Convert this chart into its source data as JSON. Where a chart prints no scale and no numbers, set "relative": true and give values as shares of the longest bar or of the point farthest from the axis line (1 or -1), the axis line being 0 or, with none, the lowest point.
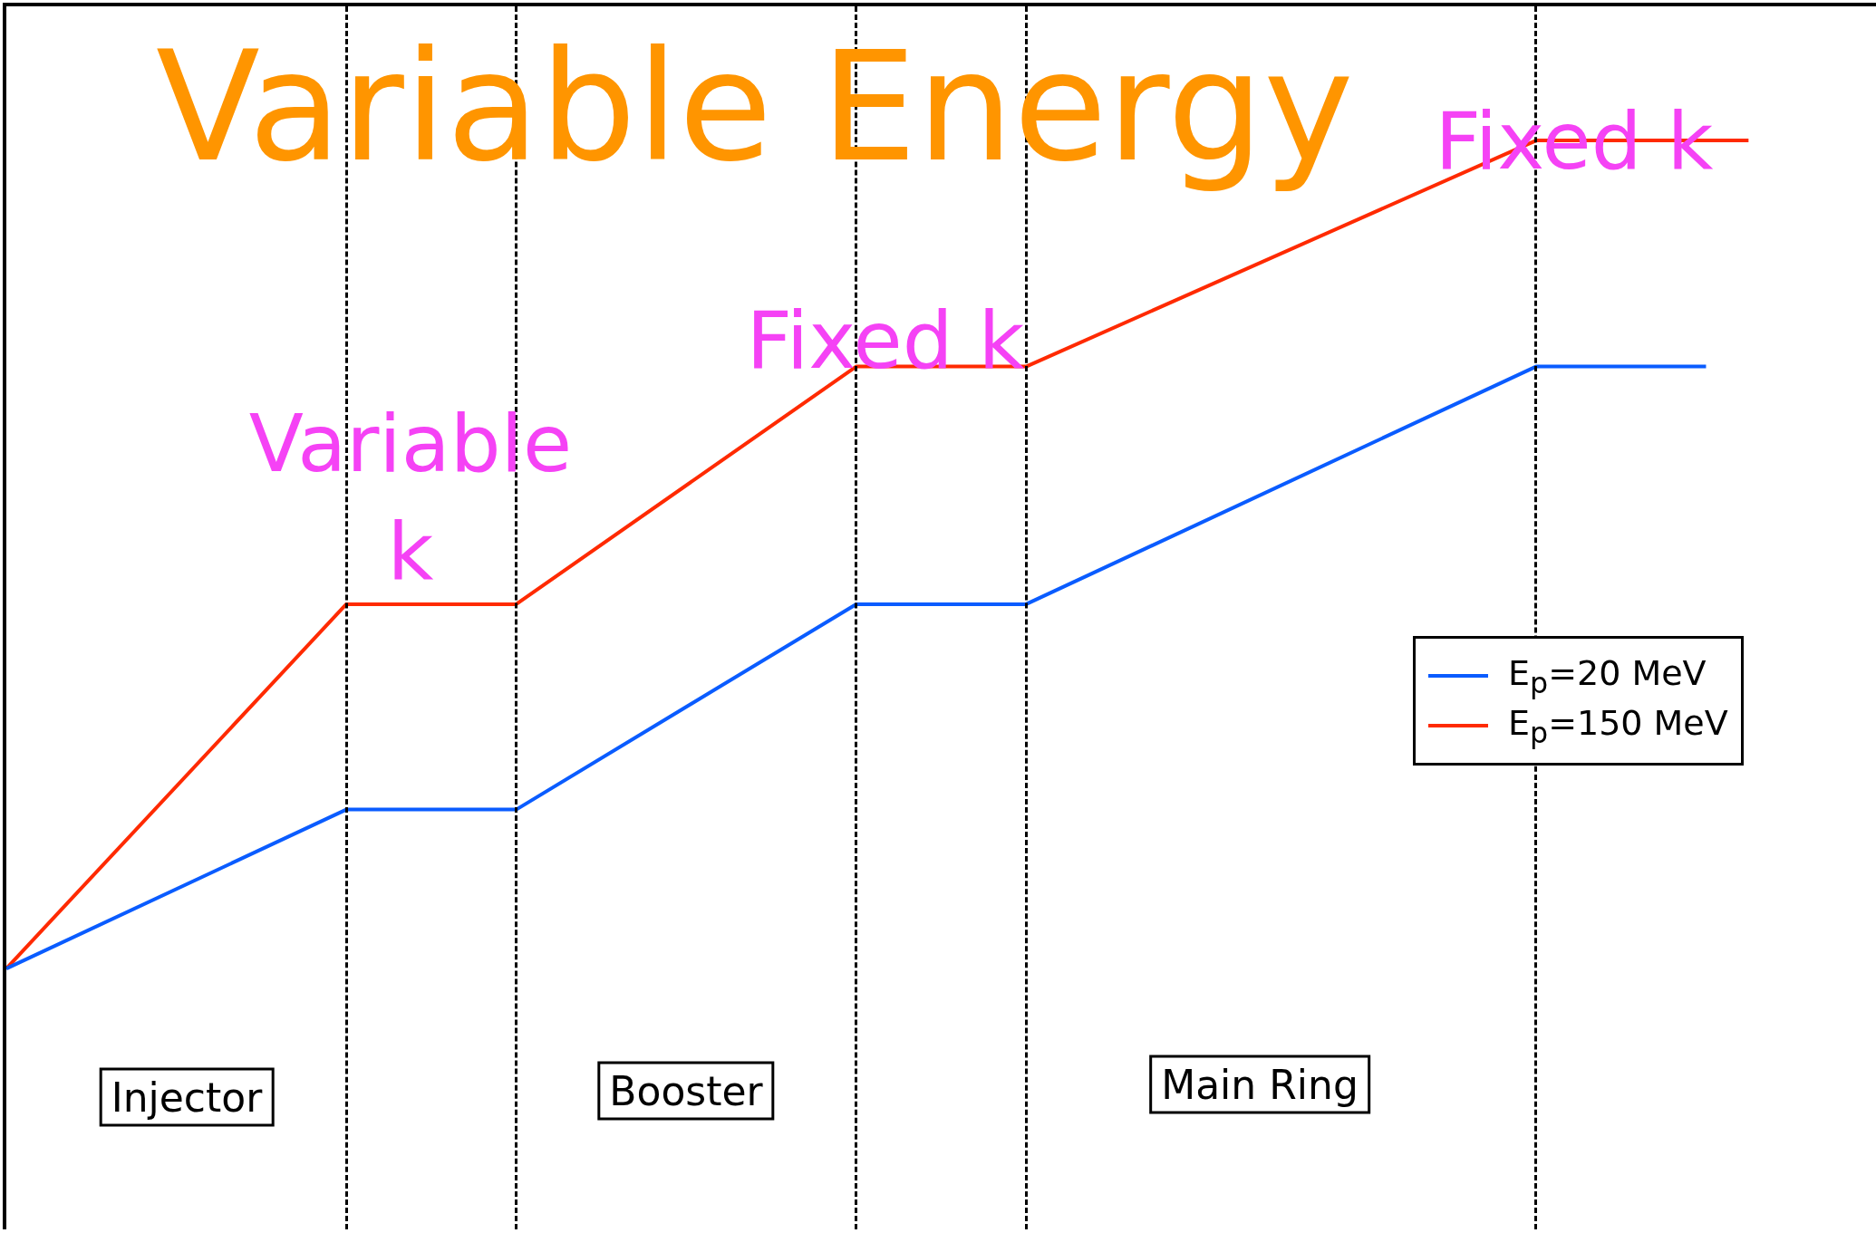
{
  "chart_data": {
    "type": "line",
    "title": "Variable Energy",
    "relative": true,
    "categories": [
      null,
      null,
      null,
      null,
      null,
      null,
      null,
      null,
      null,
      null,
      null,
      null,
      null,
      null,
      null,
      null,
      null,
      null,
      null,
      null,
      null,
      null,
      null,
      null,
      null,
      null,
      null,
      null,
      null,
      null,
      null,
      null,
      null,
      null,
      null,
      null,
      null,
      null,
      null,
      null,
      null,
      null,
      null,
      null,
      null
    ],
    "series": [
      {
        "name": "E$_{p}$=20 MeV",
        "color": "#0a5cff",
        "values": [
          0,
          null,
          null,
          null,
          null,
          null,
          null,
          null,
          0.192,
          null,
          null,
          null,
          0.192,
          null,
          null,
          null,
          null,
          null,
          null,
          null,
          0.44,
          null,
          null,
          null,
          0.44,
          null,
          null,
          null,
          null,
          null,
          null,
          null,
          null,
          null,
          null,
          null,
          0.727,
          null,
          null,
          null,
          0.727,
          null,
          null,
          null,
          null
        ]
      },
      {
        "name": "E$_{p}$=150 MeV",
        "color": "#ff2a00",
        "values": [
          0,
          null,
          null,
          null,
          null,
          null,
          null,
          null,
          0.44,
          null,
          null,
          null,
          0.44,
          null,
          null,
          null,
          null,
          null,
          null,
          null,
          0.727,
          null,
          null,
          null,
          0.727,
          null,
          null,
          null,
          null,
          null,
          null,
          null,
          null,
          null,
          null,
          null,
          1,
          null,
          null,
          null,
          null,
          1,
          null,
          null,
          null
        ]
      }
    ],
    "annotations": [
      "Variable k",
      "Fixed k",
      "Fixed k",
      "Injector",
      "Booster",
      "Main Ring"
    ],
    "legend": "right",
    "grid": "x",
    "marker": "none",
    "line_style": "solid"
  }
}
